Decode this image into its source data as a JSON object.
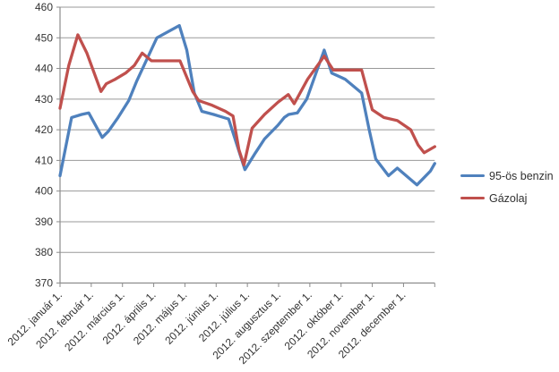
{
  "chart": {
    "background": "#ffffff",
    "grid_color": "#999999",
    "axis_color": "#8c8c8c",
    "tick_color": "#8c8c8c",
    "text_color": "#333333"
  },
  "chart_data": {
    "type": "line",
    "title": "",
    "xlabel": "",
    "ylabel": "",
    "grid": true,
    "legend_position": "right-middle",
    "x_axis": {
      "min": 0,
      "max": 12,
      "tick_count": 13
    },
    "x_tick_labels": [
      "2012. január 1.",
      "2012. február 1.",
      "2012. március 1.",
      "2012. április 1.",
      "2012. május 1.",
      "2012. június 1.",
      "2012. július 1.",
      "2012. augusztus 1.",
      "2012. szeptember 1.",
      "2012. október 1.",
      "2012. november 1.",
      "2012. december 1."
    ],
    "y_axis": {
      "min": 370,
      "max": 460,
      "step": 10,
      "ticks": [
        370,
        380,
        390,
        400,
        410,
        420,
        430,
        440,
        450,
        460
      ]
    },
    "series": [
      {
        "name": "95-ös benzin",
        "color": "#4F81BD",
        "points": [
          [
            0,
            405
          ],
          [
            0.37,
            424
          ],
          [
            0.69,
            425
          ],
          [
            0.92,
            425.5
          ],
          [
            1.35,
            417.5
          ],
          [
            1.55,
            419.5
          ],
          [
            1.86,
            424
          ],
          [
            2.2,
            429.5
          ],
          [
            2.46,
            436
          ],
          [
            3.1,
            450
          ],
          [
            3.82,
            454
          ],
          [
            4.06,
            446
          ],
          [
            4.3,
            432
          ],
          [
            4.54,
            426
          ],
          [
            4.92,
            425
          ],
          [
            5.4,
            423.5
          ],
          [
            5.92,
            407
          ],
          [
            6.26,
            412.5
          ],
          [
            6.55,
            417
          ],
          [
            6.98,
            421.5
          ],
          [
            7.18,
            424
          ],
          [
            7.32,
            425
          ],
          [
            7.6,
            425.5
          ],
          [
            7.9,
            430
          ],
          [
            8.46,
            446
          ],
          [
            8.7,
            438.5
          ],
          [
            9.13,
            436.5
          ],
          [
            9.66,
            432
          ],
          [
            9.9,
            420
          ],
          [
            10.11,
            410.5
          ],
          [
            10.52,
            405
          ],
          [
            10.8,
            407.5
          ],
          [
            11.43,
            402
          ],
          [
            11.86,
            406.5
          ],
          [
            12,
            409
          ]
        ]
      },
      {
        "name": "Gázolaj",
        "color": "#C0504D",
        "points": [
          [
            0,
            427
          ],
          [
            0.28,
            441
          ],
          [
            0.57,
            451
          ],
          [
            0.86,
            445
          ],
          [
            1.31,
            432.5
          ],
          [
            1.48,
            435
          ],
          [
            1.77,
            436.5
          ],
          [
            2.1,
            438.5
          ],
          [
            2.38,
            441
          ],
          [
            2.63,
            445
          ],
          [
            2.93,
            442.5
          ],
          [
            3.84,
            442.5
          ],
          [
            4.25,
            432.5
          ],
          [
            4.44,
            429.5
          ],
          [
            4.87,
            428
          ],
          [
            5.3,
            426
          ],
          [
            5.54,
            424.5
          ],
          [
            5.73,
            413.5
          ],
          [
            5.89,
            408.5
          ],
          [
            6.15,
            420.5
          ],
          [
            6.55,
            425
          ],
          [
            6.98,
            429
          ],
          [
            7.31,
            431.5
          ],
          [
            7.5,
            428.5
          ],
          [
            7.93,
            436.5
          ],
          [
            8.46,
            444
          ],
          [
            8.75,
            439.5
          ],
          [
            9.66,
            439.5
          ],
          [
            10.0,
            426.5
          ],
          [
            10.37,
            424
          ],
          [
            10.8,
            423
          ],
          [
            11.23,
            420
          ],
          [
            11.47,
            415
          ],
          [
            11.66,
            412.5
          ],
          [
            12,
            414.5
          ]
        ]
      }
    ]
  }
}
